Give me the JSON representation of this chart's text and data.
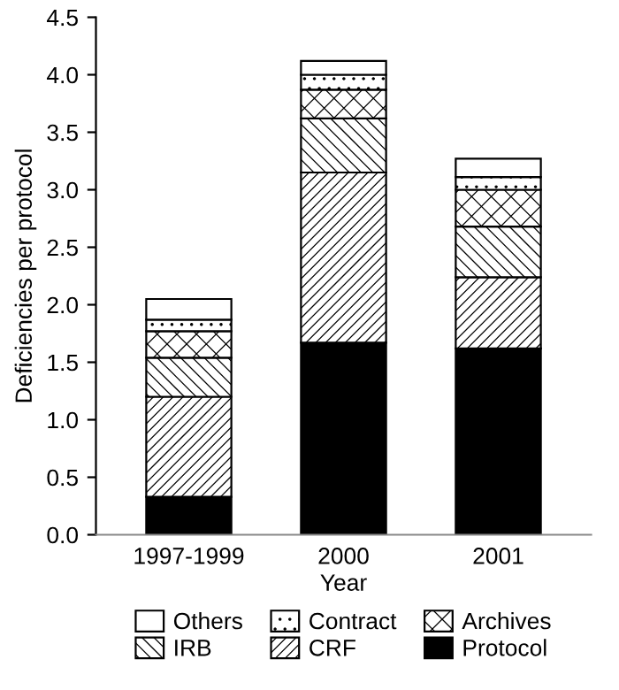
{
  "chart_data": {
    "type": "bar",
    "stacked": true,
    "xlabel": "Year",
    "ylabel": "Deficiencies per protocol",
    "categories": [
      "1997-1999",
      "2000",
      "2001"
    ],
    "series": [
      {
        "name": "Protocol",
        "color": "#000000",
        "values": [
          0.33,
          1.67,
          1.62
        ]
      },
      {
        "name": "CRF",
        "color": "#ffffff",
        "values": [
          0.87,
          1.48,
          0.62
        ]
      },
      {
        "name": "IRB",
        "color": "#ffffff",
        "values": [
          0.34,
          0.47,
          0.44
        ]
      },
      {
        "name": "Archives",
        "color": "#ffffff",
        "values": [
          0.23,
          0.25,
          0.32
        ]
      },
      {
        "name": "Contract",
        "color": "#ffffff",
        "values": [
          0.1,
          0.13,
          0.11
        ]
      },
      {
        "name": "Others",
        "color": "#ffffff",
        "values": [
          0.18,
          0.12,
          0.16
        ]
      }
    ],
    "ylim": [
      0,
      4.5
    ],
    "yticks": [
      {
        "value": 0,
        "label": "0.0"
      },
      {
        "value": 0.5,
        "label": "0.5"
      },
      {
        "value": 1,
        "label": "1.0"
      },
      {
        "value": 1.5,
        "label": "1.5"
      },
      {
        "value": 2,
        "label": "2.0"
      },
      {
        "value": 2.5,
        "label": "2.5"
      },
      {
        "value": 3,
        "label": "3.0"
      },
      {
        "value": 3.5,
        "label": "3.5"
      },
      {
        "value": 4,
        "label": "4.0"
      },
      {
        "value": 4.5,
        "label": "4.5"
      }
    ],
    "grid": false,
    "legend": "bottom"
  }
}
